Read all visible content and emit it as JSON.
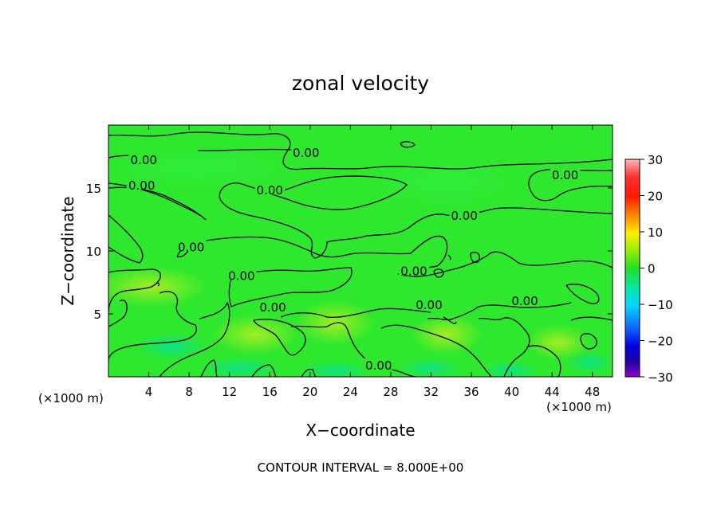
{
  "chart_data": {
    "type": "heatmap",
    "title": "zonal velocity",
    "xlabel": "X−coordinate",
    "ylabel": "Z−coordinate",
    "x_unit_left": "(×1000 m)",
    "x_unit_right": "(×1000 m)",
    "xlim": [
      0,
      50
    ],
    "ylim": [
      0,
      20
    ],
    "xticks": [
      4,
      8,
      12,
      16,
      20,
      24,
      28,
      32,
      36,
      40,
      44,
      48
    ],
    "yticks": [
      5,
      10,
      15
    ],
    "colorbar": {
      "range": [
        -30,
        30
      ],
      "ticks": [
        30,
        20,
        10,
        0,
        -10,
        -20,
        -30
      ],
      "tick_labels": [
        "30",
        "20",
        "10",
        "0",
        "−10",
        "−20",
        "−30"
      ]
    },
    "contour_label": "0.00",
    "contour_labels": [
      {
        "text": "0.00",
        "x": 3.5,
        "z": 17.2
      },
      {
        "text": "0.00",
        "x": 19.6,
        "z": 17.8
      },
      {
        "text": "0.00",
        "x": 45.3,
        "z": 16.0
      },
      {
        "text": "0.00",
        "x": 3.3,
        "z": 15.2
      },
      {
        "text": "0.00",
        "x": 16.0,
        "z": 14.8
      },
      {
        "text": "0.00",
        "x": 35.3,
        "z": 12.8
      },
      {
        "text": "0.00",
        "x": 8.2,
        "z": 10.3
      },
      {
        "text": "0.00",
        "x": 13.2,
        "z": 8.0
      },
      {
        "text": "0.00",
        "x": 30.3,
        "z": 8.4
      },
      {
        "text": "0.00",
        "x": 16.3,
        "z": 5.5
      },
      {
        "text": "0.00",
        "x": 31.8,
        "z": 5.7
      },
      {
        "text": "0.00",
        "x": 41.3,
        "z": 6.0
      },
      {
        "text": "0.00",
        "x": 26.8,
        "z": 0.9
      }
    ],
    "grid": false,
    "colors": {
      "field": "#2ee82e",
      "line": "#000000"
    }
  },
  "footer": "CONTOUR INTERVAL = 8.000E+00"
}
